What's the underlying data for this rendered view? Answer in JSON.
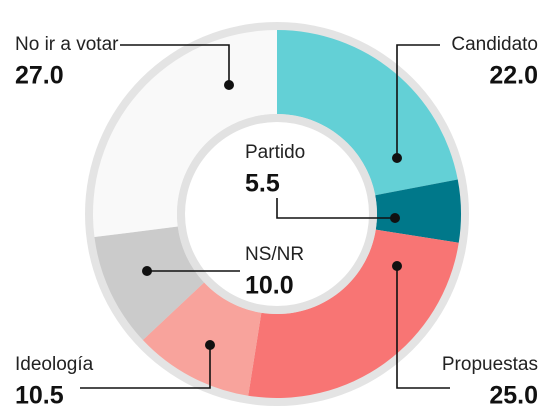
{
  "chart_data": {
    "type": "donut",
    "categories": [
      "Candidato",
      "Partido",
      "Propuestas",
      "Ideología",
      "NS/NR",
      "No ir a votar"
    ],
    "values": [
      22.0,
      5.5,
      25.0,
      10.5,
      10.0,
      27.0
    ],
    "value_labels": [
      "22.0",
      "5.5",
      "25.0",
      "10.5",
      "10.0",
      "27.0"
    ],
    "colors": [
      "#63d0d6",
      "#00788a",
      "#f87574",
      "#f8a39c",
      "#cbcbcb",
      "#f9f9f9"
    ]
  }
}
